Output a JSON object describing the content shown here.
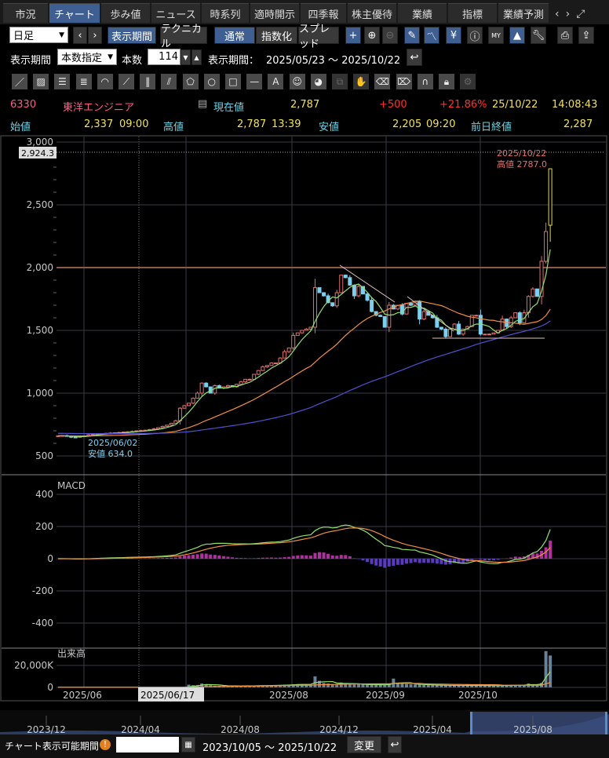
{
  "tabs": [
    "市況",
    "チャート",
    "歩み値",
    "ニュース",
    "時系列",
    "適時開示",
    "四季報",
    "株主優待",
    "業績",
    "指標",
    "業績予測"
  ],
  "active_tab": "チャート",
  "toolbar": {
    "period_select": "日足",
    "display_period": "表示期間",
    "technical": "テクニカル",
    "normal": "通常",
    "indexed": "指数化",
    "spread": "スプレッド",
    "plus": "+"
  },
  "period_row": {
    "label": "表示期間",
    "mode": "本数指定",
    "count_label": "本数",
    "count": "114",
    "range_label": "表示期間：",
    "range": "2025/05/23 ～ 2025/10/22"
  },
  "quote": {
    "code": "6330",
    "name": "東洋エンジニア",
    "current_label": "現在値",
    "current": "2,787",
    "change": "+500",
    "change_pct": "+21.86%",
    "date": "25/10/22",
    "time": "14:08:43",
    "open_label": "始値",
    "open": "2,337",
    "open_time": "09:00",
    "high_label": "高値",
    "high": "2,787",
    "high_time": "13:39",
    "low_label": "安値",
    "low": "2,205",
    "low_time": "09:20",
    "prev_label": "前日終値",
    "prev": "2,287"
  },
  "chart_data": {
    "type": "candlestick",
    "price_ticks": [
      "3,000",
      "2,500",
      "2,000",
      "1,500",
      "1,000",
      "500"
    ],
    "price_tick_values": [
      3000,
      2500,
      2000,
      1500,
      1000,
      500
    ],
    "cursor_price": "2,924.3",
    "high_annotation": {
      "date": "2025/10/22",
      "text": "高値 2787.0"
    },
    "low_annotation": {
      "date": "2025/06/02",
      "text": "安値 634.0"
    },
    "x_labels": [
      "2025/06",
      "2025/08",
      "2025/09",
      "2025/10"
    ],
    "cursor_date": "2025/06/17",
    "closes": [
      660,
      662,
      655,
      650,
      648,
      655,
      660,
      668,
      672,
      675,
      678,
      680,
      682,
      684,
      686,
      690,
      692,
      695,
      700,
      702,
      705,
      710,
      715,
      725,
      735,
      745,
      760,
      780,
      880,
      900,
      920,
      960,
      1000,
      1080,
      1050,
      1000,
      1060,
      1040,
      1050,
      1060,
      1050,
      1070,
      1090,
      1110,
      1110,
      1150,
      1180,
      1210,
      1220,
      1240,
      1240,
      1280,
      1330,
      1360,
      1460,
      1480,
      1500,
      1510,
      1525,
      1840,
      1800,
      1775,
      1720,
      1695,
      1800,
      1940,
      1920,
      1860,
      1775,
      1850,
      1790,
      1740,
      1650,
      1620,
      1610,
      1525,
      1700,
      1670,
      1700,
      1630,
      1715,
      1700,
      1730,
      1590,
      1650,
      1620,
      1600,
      1525,
      1510,
      1450,
      1510,
      1550,
      1470,
      1510,
      1530,
      1620,
      1620,
      1470,
      1470,
      1470,
      1480,
      1500,
      1590,
      1530,
      1600,
      1640,
      1560,
      1640,
      1770,
      1830,
      1770,
      2050,
      2287,
      2787
    ],
    "last_bar": {
      "open": 2337,
      "high": 2787,
      "low": 2205,
      "close": 2787
    },
    "moving_averages": [
      5,
      25,
      75
    ],
    "macd": {
      "label": "MACD",
      "ticks": [
        "400",
        "200",
        "0",
        "-200",
        "-400"
      ],
      "tick_values": [
        400,
        200,
        0,
        -200,
        -400
      ]
    },
    "volume": {
      "label": "出来高",
      "ticks": [
        "20,000K",
        "0"
      ],
      "tick_values": [
        20000,
        0
      ],
      "values": [
        100,
        100,
        100,
        100,
        100,
        100,
        100,
        100,
        100,
        100,
        100,
        100,
        100,
        100,
        100,
        100,
        100,
        100,
        100,
        100,
        100,
        100,
        100,
        100,
        100,
        100,
        100,
        100,
        100,
        100,
        2500,
        2000,
        2200,
        3500,
        2800,
        2000,
        1500,
        1400,
        1300,
        1200,
        1500,
        1300,
        1200,
        1400,
        1500,
        1600,
        1800,
        1700,
        1600,
        1800,
        2000,
        2200,
        2500,
        2300,
        2800,
        3000,
        2700,
        2900,
        2600,
        10000,
        6000,
        4000,
        3500,
        3000,
        3200,
        4500,
        3800,
        3000,
        2500,
        2800,
        2600,
        2400,
        2500,
        2300,
        2200,
        2400,
        3000,
        8000,
        4000,
        3200,
        3000,
        2800,
        2600,
        2500,
        2300,
        2100,
        2000,
        1900,
        1800,
        2000,
        1900,
        1800,
        1700,
        1800,
        1700,
        1900,
        1800,
        1700,
        1600,
        1500,
        1600,
        1700,
        1800,
        1900,
        2000,
        2100,
        2200,
        2300,
        3500,
        2500,
        2500,
        4000,
        33000,
        29000
      ]
    }
  },
  "navigator": {
    "labels": [
      "2023/12",
      "2024/04",
      "2024/08",
      "2024/12",
      "2025/04",
      "2025/08"
    ]
  },
  "bottom": {
    "label": "チャート表示可能期間",
    "input": "",
    "range": "2023/10/05 ～ 2025/10/22",
    "change": "変更"
  },
  "colors": {
    "up": "#e07070",
    "down": "#7cd0ee",
    "ma5": "#90e070",
    "ma25": "#f09040",
    "ma75": "#5050d0",
    "macd_pos": "#b030a0",
    "macd_neg": "#5a3ac0"
  }
}
